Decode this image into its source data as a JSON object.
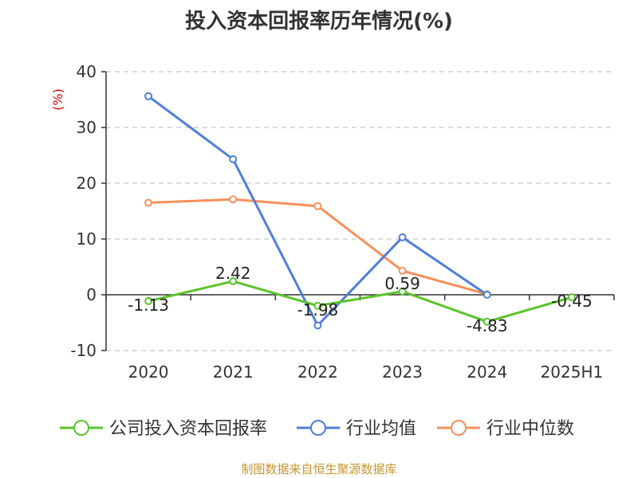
{
  "chart_data": {
    "type": "line",
    "title": "投入资本回报率历年情况(%)",
    "ylabel": "(%)",
    "categories": [
      "2020",
      "2021",
      "2022",
      "2023",
      "2024",
      "2025H1"
    ],
    "ylim": [
      -10,
      40
    ],
    "yticks": [
      -10,
      0,
      10,
      20,
      30,
      40
    ],
    "grid": true,
    "legend_position": "bottom",
    "series": [
      {
        "name": "公司投入资本回报率",
        "color": "#5ac42b",
        "values": [
          -1.13,
          2.42,
          -1.98,
          0.59,
          -4.83,
          -0.45
        ],
        "labels": [
          "-1.13",
          "2.42",
          "-1.98",
          "0.59",
          "-4.83",
          "-0.45"
        ]
      },
      {
        "name": "行业均值",
        "color": "#4f7fd8",
        "values": [
          35.6,
          24.3,
          -5.5,
          10.3,
          0.0,
          null
        ],
        "labels": []
      },
      {
        "name": "行业中位数",
        "color": "#f5905a",
        "values": [
          16.5,
          17.1,
          15.9,
          4.3,
          0.1,
          null
        ],
        "labels": []
      }
    ]
  },
  "source": "制图数据来自恒生聚源数据库"
}
